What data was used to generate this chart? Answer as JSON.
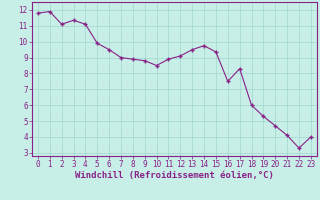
{
  "x": [
    0,
    1,
    2,
    3,
    4,
    5,
    6,
    7,
    8,
    9,
    10,
    11,
    12,
    13,
    14,
    15,
    16,
    17,
    18,
    19,
    20,
    21,
    22,
    23
  ],
  "y": [
    11.8,
    11.9,
    11.1,
    11.35,
    11.1,
    9.9,
    9.5,
    9.0,
    8.9,
    8.8,
    8.5,
    8.9,
    9.1,
    9.5,
    9.75,
    9.35,
    7.5,
    8.3,
    6.0,
    5.3,
    4.7,
    4.1,
    3.3,
    4.0
  ],
  "line_color": "#882288",
  "marker": "+",
  "marker_size": 3.5,
  "marker_lw": 1.0,
  "bg_color": "#C8EEE8",
  "grid_color": "#A0D8CC",
  "axis_color": "#882288",
  "xlabel": "Windchill (Refroidissement éolien,°C)",
  "xlabel_fontsize": 6.5,
  "tick_fontsize": 5.5,
  "ylim": [
    2.8,
    12.5
  ],
  "xlim": [
    -0.5,
    23.5
  ],
  "yticks": [
    3,
    4,
    5,
    6,
    7,
    8,
    9,
    10,
    11,
    12
  ],
  "xticks": [
    0,
    1,
    2,
    3,
    4,
    5,
    6,
    7,
    8,
    9,
    10,
    11,
    12,
    13,
    14,
    15,
    16,
    17,
    18,
    19,
    20,
    21,
    22,
    23
  ]
}
